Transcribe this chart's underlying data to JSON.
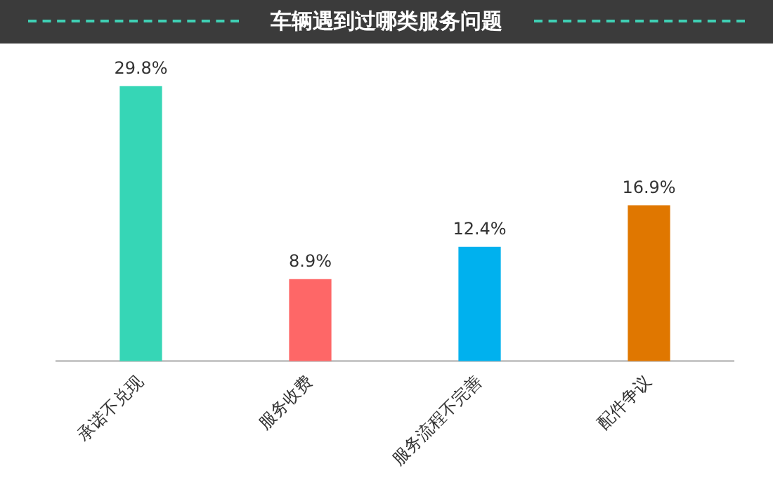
{
  "chart_data": {
    "type": "bar",
    "title": "车辆遇到过哪类服务问题",
    "categories": [
      "承诺不兑现",
      "服务收费",
      "服务流程不完善",
      "配件争议"
    ],
    "values": [
      29.8,
      8.9,
      12.4,
      16.9
    ],
    "colors": [
      "#36d6b6",
      "#fe6767",
      "#00b1ee",
      "#e07700"
    ],
    "value_labels": [
      "29.8%",
      "8.9%",
      "12.4%",
      "16.9%"
    ],
    "grid": false,
    "legend": false
  }
}
